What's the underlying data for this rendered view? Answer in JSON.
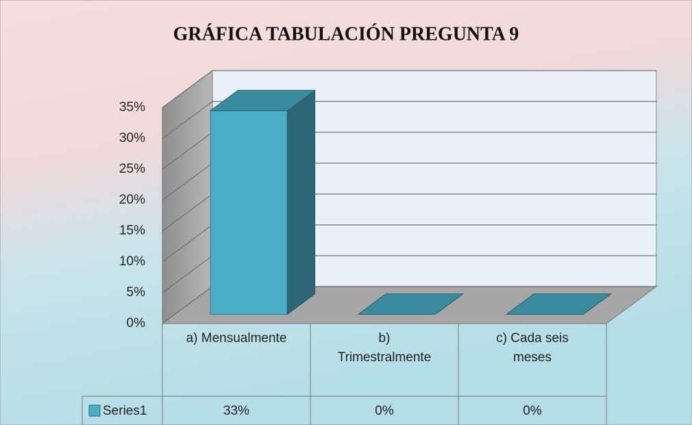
{
  "chart_data": {
    "type": "bar3d",
    "title": "GRÁFICA TABULACIÓN PREGUNTA 9",
    "categories": [
      "a) Mensualmente",
      "b) Trimestralmente",
      "c) Cada seis meses"
    ],
    "series": [
      {
        "name": "Series1",
        "color": "#4bacc6",
        "values": [
          33,
          0,
          0
        ],
        "value_labels": [
          "33%",
          "0%",
          "0%"
        ]
      }
    ],
    "ylim": [
      0,
      35
    ],
    "yticks": [
      {
        "value": 0,
        "label": "0%"
      },
      {
        "value": 5,
        "label": "5%"
      },
      {
        "value": 10,
        "label": "10%"
      },
      {
        "value": 15,
        "label": "15%"
      },
      {
        "value": 20,
        "label": "20%"
      },
      {
        "value": 25,
        "label": "25%"
      },
      {
        "value": 30,
        "label": "30%"
      },
      {
        "value": 35,
        "label": "35%"
      }
    ],
    "grid": true,
    "data_table": true
  }
}
